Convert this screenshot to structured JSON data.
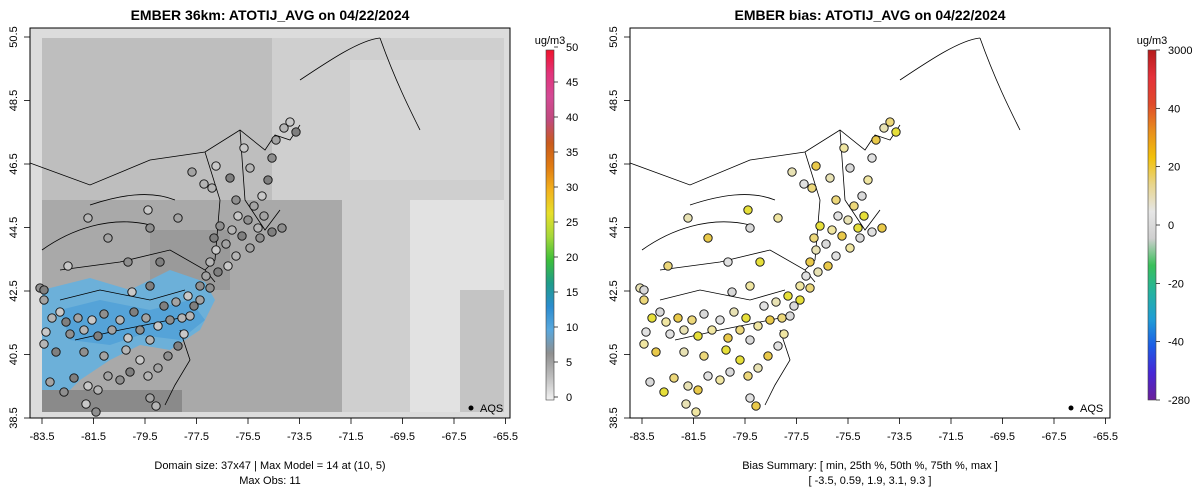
{
  "panels": [
    {
      "title": "EMBER 36km: ATOTIJ_AVG on 04/22/2024",
      "footer_lines": [
        "Domain size: 37x47 | Max Model = 14 at (10, 5)",
        "Max Obs: 11"
      ],
      "legend_label": "AQS",
      "colorbar": {
        "unit": "ug/m3",
        "ticks": [
          "0",
          "5",
          "10",
          "15",
          "20",
          "25",
          "30",
          "35",
          "40",
          "45",
          "50"
        ],
        "stops": [
          "#f2f2f2",
          "#bdbdbd",
          "#8f8f8f",
          "#5aa8dd",
          "#2b8ccf",
          "#1f9c8a",
          "#3dbf3a",
          "#a5d83a",
          "#e7df2a",
          "#f3b21d",
          "#e07b12",
          "#c95b1c",
          "#c04a7e",
          "#d44a95",
          "#e2337a",
          "#f0122c"
        ]
      },
      "chart_data": {
        "type": "heatmap",
        "x_ticks": [
          "-83.5",
          "-81.5",
          "-79.5",
          "-77.5",
          "-75.5",
          "-73.5",
          "-71.5",
          "-69.5",
          "-67.5",
          "-65.5"
        ],
        "y_ticks": [
          "38.5",
          "40.5",
          "42.5",
          "44.5",
          "46.5",
          "48.5",
          "50.5"
        ],
        "xlim": [
          -84.5,
          -65
        ],
        "ylim": [
          38.5,
          50.5
        ],
        "variable": "ATOTIJ_AVG",
        "date": "04/22/2024",
        "grid_size": "37x47",
        "max_model": 14,
        "max_obs": 11
      }
    },
    {
      "title": "EMBER bias: ATOTIJ_AVG on 04/22/2024",
      "footer_lines": [
        "Bias Summary: [ min, 25th %, 50th %, 75th %, max ]",
        "[ -3.5,   0.59,   1.9,   3.1,   9.3 ]"
      ],
      "legend_label": "AQS",
      "colorbar": {
        "unit": "ug/m3",
        "ticks": [
          "-280",
          "-40",
          "-20",
          "0",
          "20",
          "40",
          "3000"
        ],
        "stops": [
          "#6a1f9a",
          "#4726d6",
          "#1c5ce6",
          "#1f9dd6",
          "#25b3a0",
          "#39c05a",
          "#cfcfcf",
          "#e6e6e6",
          "#e8d58c",
          "#f2c10a",
          "#e88e1d",
          "#e04a2b",
          "#e5303a",
          "#b51b1b"
        ]
      },
      "chart_data": {
        "type": "scatter",
        "x_ticks": [
          "-83.5",
          "-81.5",
          "-79.5",
          "-77.5",
          "-75.5",
          "-73.5",
          "-71.5",
          "-69.5",
          "-67.5",
          "-65.5"
        ],
        "y_ticks": [
          "38.5",
          "40.5",
          "42.5",
          "44.5",
          "46.5",
          "48.5",
          "50.5"
        ],
        "xlim": [
          -84.5,
          -65
        ],
        "ylim": [
          38.5,
          50.5
        ],
        "bias_summary": {
          "min": -3.5,
          "p25": 0.59,
          "p50": 1.9,
          "p75": 3.1,
          "max": 9.3
        }
      }
    }
  ]
}
